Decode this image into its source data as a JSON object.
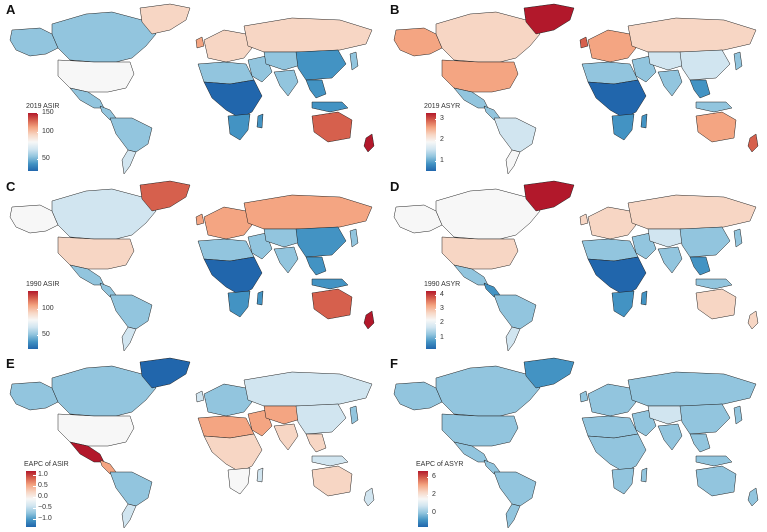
{
  "palette": {
    "deep_red": "#b2182b",
    "red": "#d6604d",
    "salmon": "#f4a582",
    "light_salmon": "#f7d6c4",
    "pale": "#f7f7f7",
    "pale_blue": "#d1e5f0",
    "light_blue": "#92c5de",
    "mid_blue": "#6aa6d0",
    "blue": "#4393c3",
    "dark_blue": "#2166ac",
    "border": "#222222"
  },
  "panels": [
    {
      "letter": "A",
      "legend_title": "2019 ASIR",
      "ticks": [
        "150",
        "100",
        "50"
      ],
      "colors": {
        "north_america": "light_blue",
        "alaska": "light_blue",
        "greenland": "light_salmon",
        "usa": "pale",
        "mexico": "light_blue",
        "central_america": "light_blue",
        "south_america": "light_blue",
        "south_america_south": "pale_blue",
        "europe": "light_salmon",
        "uk": "salmon",
        "north_africa": "light_blue",
        "africa": "dark_blue",
        "southern_africa": "blue",
        "middle_east": "light_blue",
        "russia": "light_salmon",
        "central_asia": "light_blue",
        "china": "blue",
        "india": "light_blue",
        "southeast_asia": "blue",
        "japan": "light_blue",
        "indonesia": "blue",
        "australia": "red",
        "new_zealand": "deep_red",
        "madagascar": "blue"
      }
    },
    {
      "letter": "B",
      "legend_title": "2019 ASYR",
      "ticks": [
        "3",
        "2",
        "1"
      ],
      "colors": {
        "north_america": "light_salmon",
        "alaska": "salmon",
        "greenland": "deep_red",
        "usa": "salmon",
        "mexico": "light_blue",
        "central_america": "light_blue",
        "south_america": "pale_blue",
        "south_america_south": "pale",
        "europe": "salmon",
        "uk": "red",
        "north_africa": "light_blue",
        "africa": "dark_blue",
        "southern_africa": "blue",
        "middle_east": "light_blue",
        "russia": "light_salmon",
        "central_asia": "pale_blue",
        "china": "pale_blue",
        "india": "light_blue",
        "southeast_asia": "blue",
        "japan": "light_blue",
        "indonesia": "light_blue",
        "australia": "salmon",
        "new_zealand": "red",
        "madagascar": "blue"
      }
    },
    {
      "letter": "C",
      "legend_title": "1990 ASIR",
      "ticks": [
        "100",
        "50"
      ],
      "colors": {
        "north_america": "pale_blue",
        "alaska": "pale",
        "greenland": "red",
        "usa": "light_salmon",
        "mexico": "light_blue",
        "central_america": "light_blue",
        "south_america": "light_blue",
        "south_america_south": "pale_blue",
        "europe": "salmon",
        "uk": "salmon",
        "north_africa": "light_blue",
        "africa": "dark_blue",
        "southern_africa": "blue",
        "middle_east": "light_blue",
        "russia": "salmon",
        "central_asia": "light_blue",
        "china": "blue",
        "india": "light_blue",
        "southeast_asia": "blue",
        "japan": "light_blue",
        "indonesia": "blue",
        "australia": "red",
        "new_zealand": "deep_red",
        "madagascar": "blue"
      }
    },
    {
      "letter": "D",
      "legend_title": "1990 ASYR",
      "ticks": [
        "4",
        "3",
        "2",
        "1"
      ],
      "colors": {
        "north_america": "pale",
        "alaska": "pale",
        "greenland": "deep_red",
        "usa": "light_salmon",
        "mexico": "light_blue",
        "central_america": "blue",
        "south_america": "light_blue",
        "south_america_south": "pale_blue",
        "europe": "light_salmon",
        "uk": "light_salmon",
        "north_africa": "light_blue",
        "africa": "dark_blue",
        "southern_africa": "blue",
        "middle_east": "light_blue",
        "russia": "light_salmon",
        "central_asia": "pale_blue",
        "china": "light_blue",
        "india": "light_blue",
        "southeast_asia": "blue",
        "japan": "light_blue",
        "indonesia": "light_blue",
        "australia": "light_salmon",
        "new_zealand": "light_salmon",
        "madagascar": "blue"
      }
    },
    {
      "letter": "E",
      "legend_title": "EAPC of ASIR",
      "ticks": [
        "1.0",
        "0.5",
        "0.0",
        "−0.5",
        "−1.0"
      ],
      "colors": {
        "north_america": "light_blue",
        "alaska": "light_blue",
        "greenland": "dark_blue",
        "usa": "pale",
        "mexico": "deep_red",
        "central_america": "salmon",
        "south_america": "light_blue",
        "south_america_south": "pale_blue",
        "europe": "light_blue",
        "uk": "pale_blue",
        "north_africa": "salmon",
        "africa": "light_salmon",
        "southern_africa": "pale",
        "middle_east": "salmon",
        "russia": "pale_blue",
        "central_asia": "salmon",
        "china": "pale_blue",
        "india": "light_salmon",
        "southeast_asia": "light_salmon",
        "japan": "light_blue",
        "indonesia": "pale_blue",
        "australia": "light_salmon",
        "new_zealand": "pale_blue",
        "madagascar": "pale_blue"
      }
    },
    {
      "letter": "F",
      "legend_title": "EAPC of ASYR",
      "ticks": [
        "6",
        "2",
        "0"
      ],
      "colors": {
        "north_america": "light_blue",
        "alaska": "light_blue",
        "greenland": "blue",
        "usa": "light_blue",
        "mexico": "light_blue",
        "central_america": "light_blue",
        "south_america": "light_blue",
        "south_america_south": "light_blue",
        "europe": "light_blue",
        "uk": "light_blue",
        "north_africa": "light_blue",
        "africa": "light_blue",
        "southern_africa": "light_blue",
        "middle_east": "light_blue",
        "russia": "light_blue",
        "central_asia": "pale_blue",
        "china": "light_blue",
        "india": "light_blue",
        "southeast_asia": "light_blue",
        "japan": "light_blue",
        "indonesia": "light_blue",
        "australia": "light_blue",
        "new_zealand": "light_blue",
        "madagascar": "light_blue"
      }
    }
  ]
}
